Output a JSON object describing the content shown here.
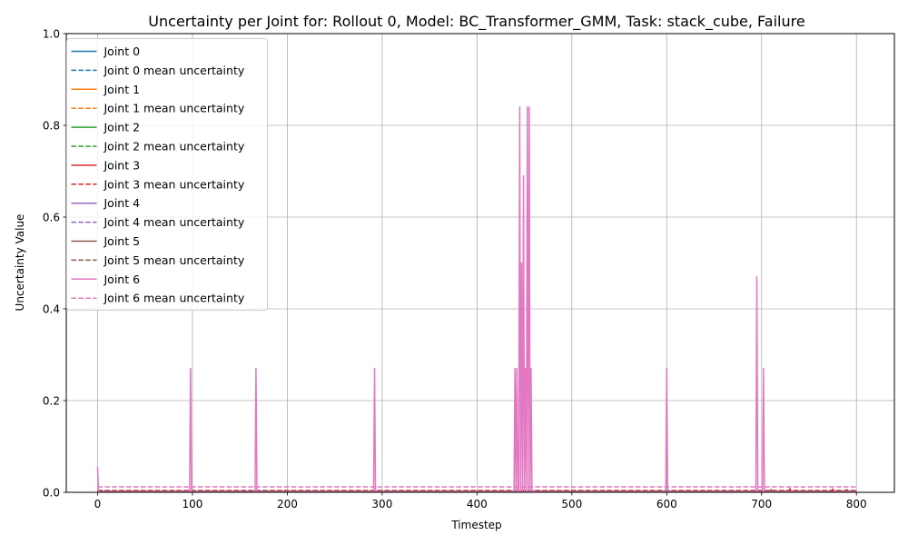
{
  "chart_data": {
    "type": "line",
    "title": "Uncertainty per Joint for: Rollout 0, Model: BC_Transformer_GMM, Task: stack_cube, Failure",
    "xlabel": "Timestep",
    "ylabel": "Uncertainty Value",
    "xlim": [
      -33,
      840
    ],
    "ylim": [
      0,
      1.0
    ],
    "xticks": [
      0,
      100,
      200,
      300,
      400,
      500,
      600,
      700,
      800
    ],
    "yticks": [
      0.0,
      0.2,
      0.4,
      0.6,
      0.8,
      1.0
    ],
    "xtick_labels": [
      "0",
      "100",
      "200",
      "300",
      "400",
      "500",
      "600",
      "700",
      "800"
    ],
    "ytick_labels": [
      "0.0",
      "0.2",
      "0.4",
      "0.6",
      "0.8",
      "1.0"
    ],
    "grid": true,
    "legend_position": "upper-left",
    "legend": [
      {
        "label": "Joint 0",
        "color": "#1f77b4",
        "style": "solid"
      },
      {
        "label": "Joint 0 mean uncertainty",
        "color": "#1f77b4",
        "style": "dashed"
      },
      {
        "label": "Joint 1",
        "color": "#ff7f0e",
        "style": "solid"
      },
      {
        "label": "Joint 1 mean uncertainty",
        "color": "#ff7f0e",
        "style": "dashed"
      },
      {
        "label": "Joint 2",
        "color": "#2ca02c",
        "style": "solid"
      },
      {
        "label": "Joint 2 mean uncertainty",
        "color": "#2ca02c",
        "style": "dashed"
      },
      {
        "label": "Joint 3",
        "color": "#d62728",
        "style": "solid"
      },
      {
        "label": "Joint 3 mean uncertainty",
        "color": "#d62728",
        "style": "dashed"
      },
      {
        "label": "Joint 4",
        "color": "#9467bd",
        "style": "solid"
      },
      {
        "label": "Joint 4 mean uncertainty",
        "color": "#9467bd",
        "style": "dashed"
      },
      {
        "label": "Joint 5",
        "color": "#8c564b",
        "style": "solid"
      },
      {
        "label": "Joint 5 mean uncertainty",
        "color": "#8c564b",
        "style": "dashed"
      },
      {
        "label": "Joint 6",
        "color": "#e377c2",
        "style": "solid"
      },
      {
        "label": "Joint 6 mean uncertainty",
        "color": "#e377c2",
        "style": "dashed"
      }
    ],
    "x_range": [
      0,
      800
    ],
    "series": [
      {
        "name": "Joint 0",
        "color": "#1f77b4",
        "baseline": 0.001,
        "peaks": []
      },
      {
        "name": "Joint 1",
        "color": "#ff7f0e",
        "baseline": 0.001,
        "peaks": []
      },
      {
        "name": "Joint 2",
        "color": "#2ca02c",
        "baseline": 0.001,
        "peaks": []
      },
      {
        "name": "Joint 3",
        "color": "#d62728",
        "baseline": 0.002,
        "peaks": [
          [
            730,
            0.008
          ],
          [
            775,
            0.007
          ]
        ]
      },
      {
        "name": "Joint 4",
        "color": "#9467bd",
        "baseline": 0.001,
        "peaks": []
      },
      {
        "name": "Joint 5",
        "color": "#8c564b",
        "baseline": 0.002,
        "peaks": [
          [
            710,
            0.006
          ],
          [
            790,
            0.006
          ]
        ]
      },
      {
        "name": "Joint 6",
        "color": "#e377c2",
        "baseline": 0.001,
        "peaks": [
          [
            0,
            0.055
          ],
          [
            98,
            0.27
          ],
          [
            167,
            0.27
          ],
          [
            292,
            0.27
          ],
          [
            440,
            0.27
          ],
          [
            442,
            0.27
          ],
          [
            445,
            0.84
          ],
          [
            447,
            0.5
          ],
          [
            449,
            0.69
          ],
          [
            451,
            0.27
          ],
          [
            453,
            0.84
          ],
          [
            455,
            0.84
          ],
          [
            457,
            0.27
          ],
          [
            600,
            0.27
          ],
          [
            695,
            0.47
          ],
          [
            702,
            0.27
          ]
        ]
      }
    ],
    "mean_series": [
      {
        "name": "Joint 0 mean uncertainty",
        "color": "#1f77b4",
        "value": 0.001
      },
      {
        "name": "Joint 1 mean uncertainty",
        "color": "#ff7f0e",
        "value": 0.001
      },
      {
        "name": "Joint 2 mean uncertainty",
        "color": "#2ca02c",
        "value": 0.001
      },
      {
        "name": "Joint 3 mean uncertainty",
        "color": "#d62728",
        "value": 0.004
      },
      {
        "name": "Joint 4 mean uncertainty",
        "color": "#9467bd",
        "value": 0.001
      },
      {
        "name": "Joint 5 mean uncertainty",
        "color": "#8c564b",
        "value": 0.003
      },
      {
        "name": "Joint 6 mean uncertainty",
        "color": "#e377c2",
        "value": 0.012
      }
    ]
  }
}
